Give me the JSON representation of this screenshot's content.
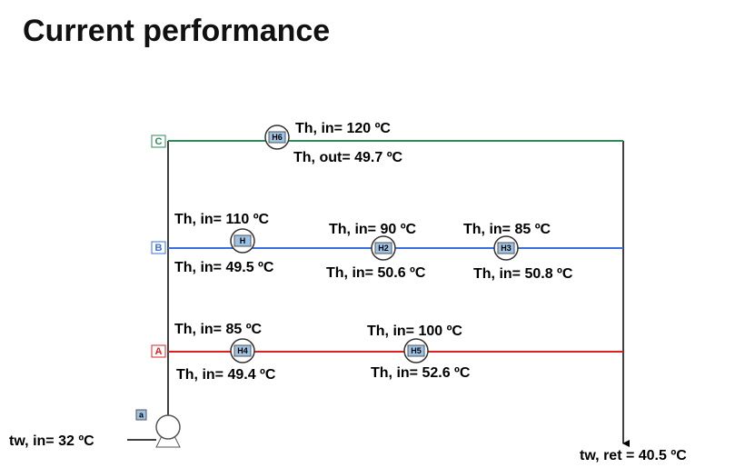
{
  "title": "Current performance",
  "branches": [
    {
      "label": "C",
      "exchangers": [
        {
          "label": "H6",
          "temp_top": "Th, in= 120 ºC",
          "temp_bottom": "Th, out= 49.7 ºC"
        }
      ]
    },
    {
      "label": "B",
      "exchangers": [
        {
          "label": "H",
          "temp_top": "Th, in= 110 ºC",
          "temp_bottom": "Th, in= 49.5 ºC"
        },
        {
          "label": "H2",
          "temp_top": "Th, in= 90 ºC",
          "temp_bottom": "Th, in= 50.6 ºC"
        },
        {
          "label": "H3",
          "temp_top": "Th, in= 85 ºC",
          "temp_bottom": "Th, in= 50.8 ºC"
        }
      ]
    },
    {
      "label": "A",
      "exchangers": [
        {
          "label": "H4",
          "temp_top": "Th, in= 85 ºC",
          "temp_bottom": "Th, in= 49.4 ºC"
        },
        {
          "label": "H5",
          "temp_top": "Th, in= 100 ºC",
          "temp_bottom": "Th, in= 52.6 ºC"
        }
      ]
    }
  ],
  "pump": {
    "label": "a"
  },
  "inlet": "tw, in= 32 ºC",
  "return": "tw, ret = 40.5 ºC"
}
